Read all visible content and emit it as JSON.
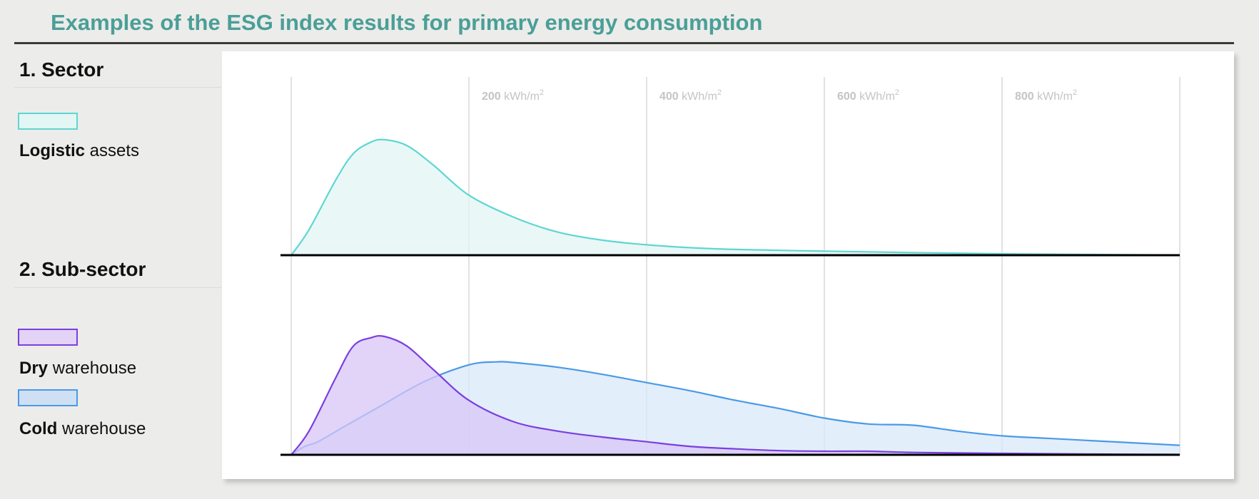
{
  "title": "Examples of the ESG index results for primary energy consumption",
  "sections": [
    {
      "heading": "1. Sector",
      "legend": [
        {
          "bold": "Logistic",
          "rest": " assets",
          "fill": "#e2f6f4",
          "stroke": "#5fd6d2"
        }
      ]
    },
    {
      "heading": "2. Sub-sector",
      "legend": [
        {
          "bold": "Dry",
          "rest": " warehouse",
          "fill": "#e3d3f6",
          "stroke": "#7b3fe0"
        },
        {
          "bold": "Cold",
          "rest": " warehouse",
          "fill": "#cfe0f4",
          "stroke": "#4a9ae8"
        }
      ]
    }
  ],
  "chart_data": [
    {
      "type": "area",
      "xlim": [
        0,
        1000
      ],
      "ylim": [
        0,
        1
      ],
      "x_ticks": [
        {
          "value": 200,
          "num": "200",
          "unit": " kWh/m",
          "sup": "2"
        },
        {
          "value": 400,
          "num": "400",
          "unit": " kWh/m",
          "sup": "2"
        },
        {
          "value": 600,
          "num": "600",
          "unit": " kWh/m",
          "sup": "2"
        },
        {
          "value": 800,
          "num": "800",
          "unit": " kWh/m",
          "sup": "2"
        }
      ],
      "gridlines": [
        0,
        200,
        400,
        600,
        800,
        1000
      ],
      "series": [
        {
          "name": "Logistic assets",
          "fill": "#e2f6f4",
          "stroke": "#5fd6d2",
          "x": [
            0,
            20,
            50,
            70,
            90,
            105,
            130,
            160,
            200,
            250,
            300,
            350,
            400,
            450,
            500,
            600,
            700,
            800,
            900,
            1000
          ],
          "y": [
            0,
            0.22,
            0.65,
            0.88,
            0.98,
            1.0,
            0.95,
            0.78,
            0.52,
            0.33,
            0.2,
            0.13,
            0.09,
            0.065,
            0.05,
            0.035,
            0.022,
            0.012,
            0.006,
            0.002
          ]
        }
      ]
    },
    {
      "type": "area",
      "xlim": [
        0,
        1000
      ],
      "ylim": [
        0,
        1
      ],
      "gridlines": [
        0,
        200,
        400,
        600,
        800,
        1000
      ],
      "series": [
        {
          "name": "Cold warehouse",
          "fill": "#dae8fa",
          "stroke": "#4a9ae8",
          "x": [
            0,
            15,
            30,
            60,
            100,
            150,
            200,
            230,
            250,
            300,
            350,
            400,
            450,
            500,
            550,
            600,
            650,
            700,
            750,
            800,
            850,
            900,
            950,
            1000
          ],
          "y": [
            0,
            0.07,
            0.11,
            0.24,
            0.41,
            0.62,
            0.76,
            0.785,
            0.78,
            0.74,
            0.68,
            0.61,
            0.54,
            0.46,
            0.39,
            0.31,
            0.26,
            0.25,
            0.2,
            0.16,
            0.14,
            0.12,
            0.1,
            0.08
          ]
        },
        {
          "name": "Dry warehouse",
          "fill": "#d8c6f7",
          "stroke": "#7b3fe0",
          "x": [
            0,
            20,
            50,
            70,
            90,
            105,
            130,
            160,
            200,
            250,
            300,
            350,
            400,
            450,
            500,
            550,
            600,
            650,
            700,
            800,
            900,
            1000
          ],
          "y": [
            0,
            0.2,
            0.65,
            0.92,
            0.99,
            1.0,
            0.92,
            0.72,
            0.46,
            0.28,
            0.2,
            0.15,
            0.11,
            0.07,
            0.05,
            0.035,
            0.03,
            0.03,
            0.02,
            0.012,
            0.006,
            0.003
          ]
        }
      ]
    }
  ]
}
